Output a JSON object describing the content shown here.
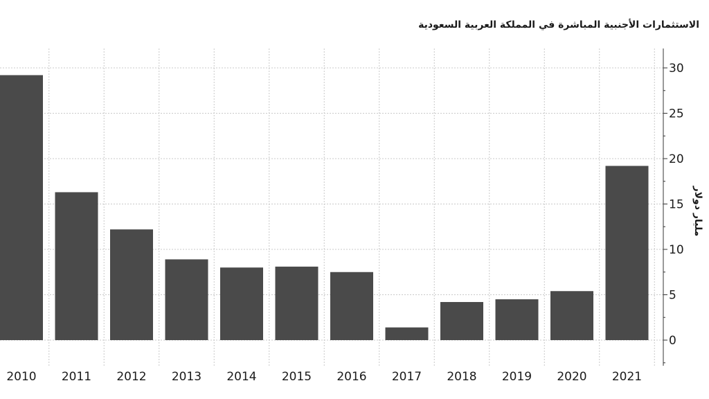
{
  "chart_data": {
    "type": "bar",
    "title": "الاستثمارات الأجنبية المباشرة في المملكة العربية السعودية",
    "ylabel": "مليار دولار",
    "xlabel": "",
    "categories": [
      "2010",
      "2011",
      "2012",
      "2013",
      "2014",
      "2015",
      "2016",
      "2017",
      "2018",
      "2019",
      "2020",
      "2021"
    ],
    "values": [
      29.2,
      16.3,
      12.2,
      8.9,
      8.0,
      8.1,
      7.5,
      1.4,
      4.2,
      4.5,
      5.4,
      19.2
    ],
    "ylim": [
      -2.5,
      32
    ],
    "yticks": [
      0,
      5,
      10,
      15,
      20,
      25,
      30
    ],
    "grid": true,
    "y_axis_side": "right",
    "bar_color": "#4a4a4a"
  }
}
